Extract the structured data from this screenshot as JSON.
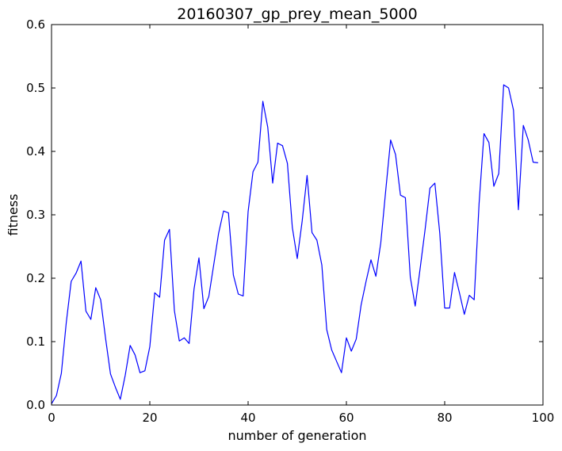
{
  "chart_data": {
    "type": "line",
    "title": "20160307_gp_prey_mean_5000",
    "xlabel": "number of generation",
    "ylabel": "fitness",
    "xlim": [
      0,
      100
    ],
    "ylim": [
      0,
      0.6
    ],
    "xticks": [
      0,
      20,
      40,
      60,
      80,
      100
    ],
    "xtick_labels": [
      "0",
      "20",
      "40",
      "60",
      "80",
      "100"
    ],
    "yticks": [
      0.0,
      0.1,
      0.2,
      0.3,
      0.4,
      0.5,
      0.6
    ],
    "ytick_labels": [
      "0.0",
      "0.1",
      "0.2",
      "0.3",
      "0.4",
      "0.5",
      "0.6"
    ],
    "grid": false,
    "legend": "none",
    "line_color": "#0000ff",
    "series": [
      {
        "x": [
          0,
          1,
          2,
          3,
          4,
          5,
          6,
          7,
          8,
          9,
          10,
          11,
          12,
          13,
          14,
          15,
          16,
          17,
          18,
          19,
          20,
          21,
          22,
          23,
          24,
          25,
          26,
          27,
          28,
          29,
          30,
          31,
          32,
          33,
          34,
          35,
          36,
          37,
          38,
          39,
          40,
          41,
          42,
          43,
          44,
          45,
          46,
          47,
          48,
          49,
          50,
          51,
          52,
          53,
          54,
          55,
          56,
          57,
          58,
          59,
          60,
          61,
          62,
          63,
          64,
          65,
          66,
          67,
          68,
          69,
          70,
          71,
          72,
          73,
          74,
          75,
          76,
          77,
          78,
          79,
          80,
          81,
          82,
          83,
          84,
          85,
          86,
          87,
          88,
          89,
          90,
          91,
          92,
          93,
          94,
          95,
          96,
          97,
          98,
          99
        ],
        "values": [
          0.002,
          0.015,
          0.05,
          0.13,
          0.195,
          0.208,
          0.227,
          0.148,
          0.135,
          0.185,
          0.166,
          0.105,
          0.049,
          0.028,
          0.009,
          0.047,
          0.094,
          0.079,
          0.051,
          0.054,
          0.092,
          0.177,
          0.17,
          0.26,
          0.277,
          0.149,
          0.101,
          0.106,
          0.097,
          0.183,
          0.232,
          0.152,
          0.171,
          0.221,
          0.271,
          0.306,
          0.303,
          0.205,
          0.175,
          0.172,
          0.305,
          0.368,
          0.383,
          0.479,
          0.438,
          0.35,
          0.413,
          0.409,
          0.381,
          0.28,
          0.231,
          0.29,
          0.362,
          0.272,
          0.26,
          0.221,
          0.119,
          0.087,
          0.069,
          0.051,
          0.106,
          0.085,
          0.104,
          0.158,
          0.195,
          0.229,
          0.203,
          0.256,
          0.338,
          0.418,
          0.395,
          0.331,
          0.327,
          0.202,
          0.156,
          0.215,
          0.276,
          0.342,
          0.35,
          0.271,
          0.153,
          0.153,
          0.209,
          0.177,
          0.143,
          0.173,
          0.166,
          0.318,
          0.428,
          0.414,
          0.345,
          0.365,
          0.505,
          0.5,
          0.465,
          0.308,
          0.441,
          0.418,
          0.383,
          0.382
        ]
      }
    ]
  }
}
